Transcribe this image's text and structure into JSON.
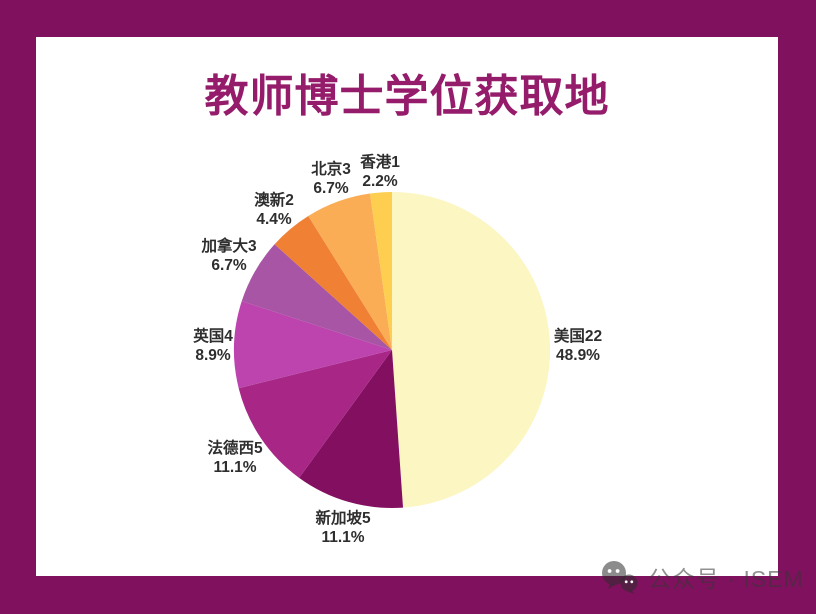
{
  "page": {
    "title": "教师博士学位获取地",
    "frame_color": "#80115E",
    "canvas_color": "#FFFFFF",
    "title_color": "#951B6B"
  },
  "watermark": {
    "icon": "wechat-official-account-icon",
    "text": "公众号 · ISEM"
  },
  "chart_data": {
    "type": "pie",
    "title": "教师博士学位获取地",
    "categories": [
      "美国",
      "新加坡",
      "法德西",
      "英国",
      "加拿大",
      "澳新",
      "北京",
      "香港"
    ],
    "values": [
      22,
      5,
      5,
      4,
      3,
      2,
      3,
      1
    ],
    "total": 45,
    "labels": [
      "美国22",
      "新加坡5",
      "法德西5",
      "英国4",
      "加拿大3",
      "澳新2",
      "北京3",
      "香港1"
    ],
    "percents": [
      "48.9%",
      "11.1%",
      "11.1%",
      "8.9%",
      "6.7%",
      "4.4%",
      "6.7%",
      "2.2%"
    ],
    "colors": [
      "#FCF6C3",
      "#830F60",
      "#A82786",
      "#BD43AE",
      "#A755A4",
      "#EF8034",
      "#FBAD55",
      "#FDCE4F"
    ],
    "start_angle_deg": 0,
    "direction": "clockwise",
    "legend": "none",
    "label_style": "outside labels: name+count on line 1, percent on line 2"
  }
}
